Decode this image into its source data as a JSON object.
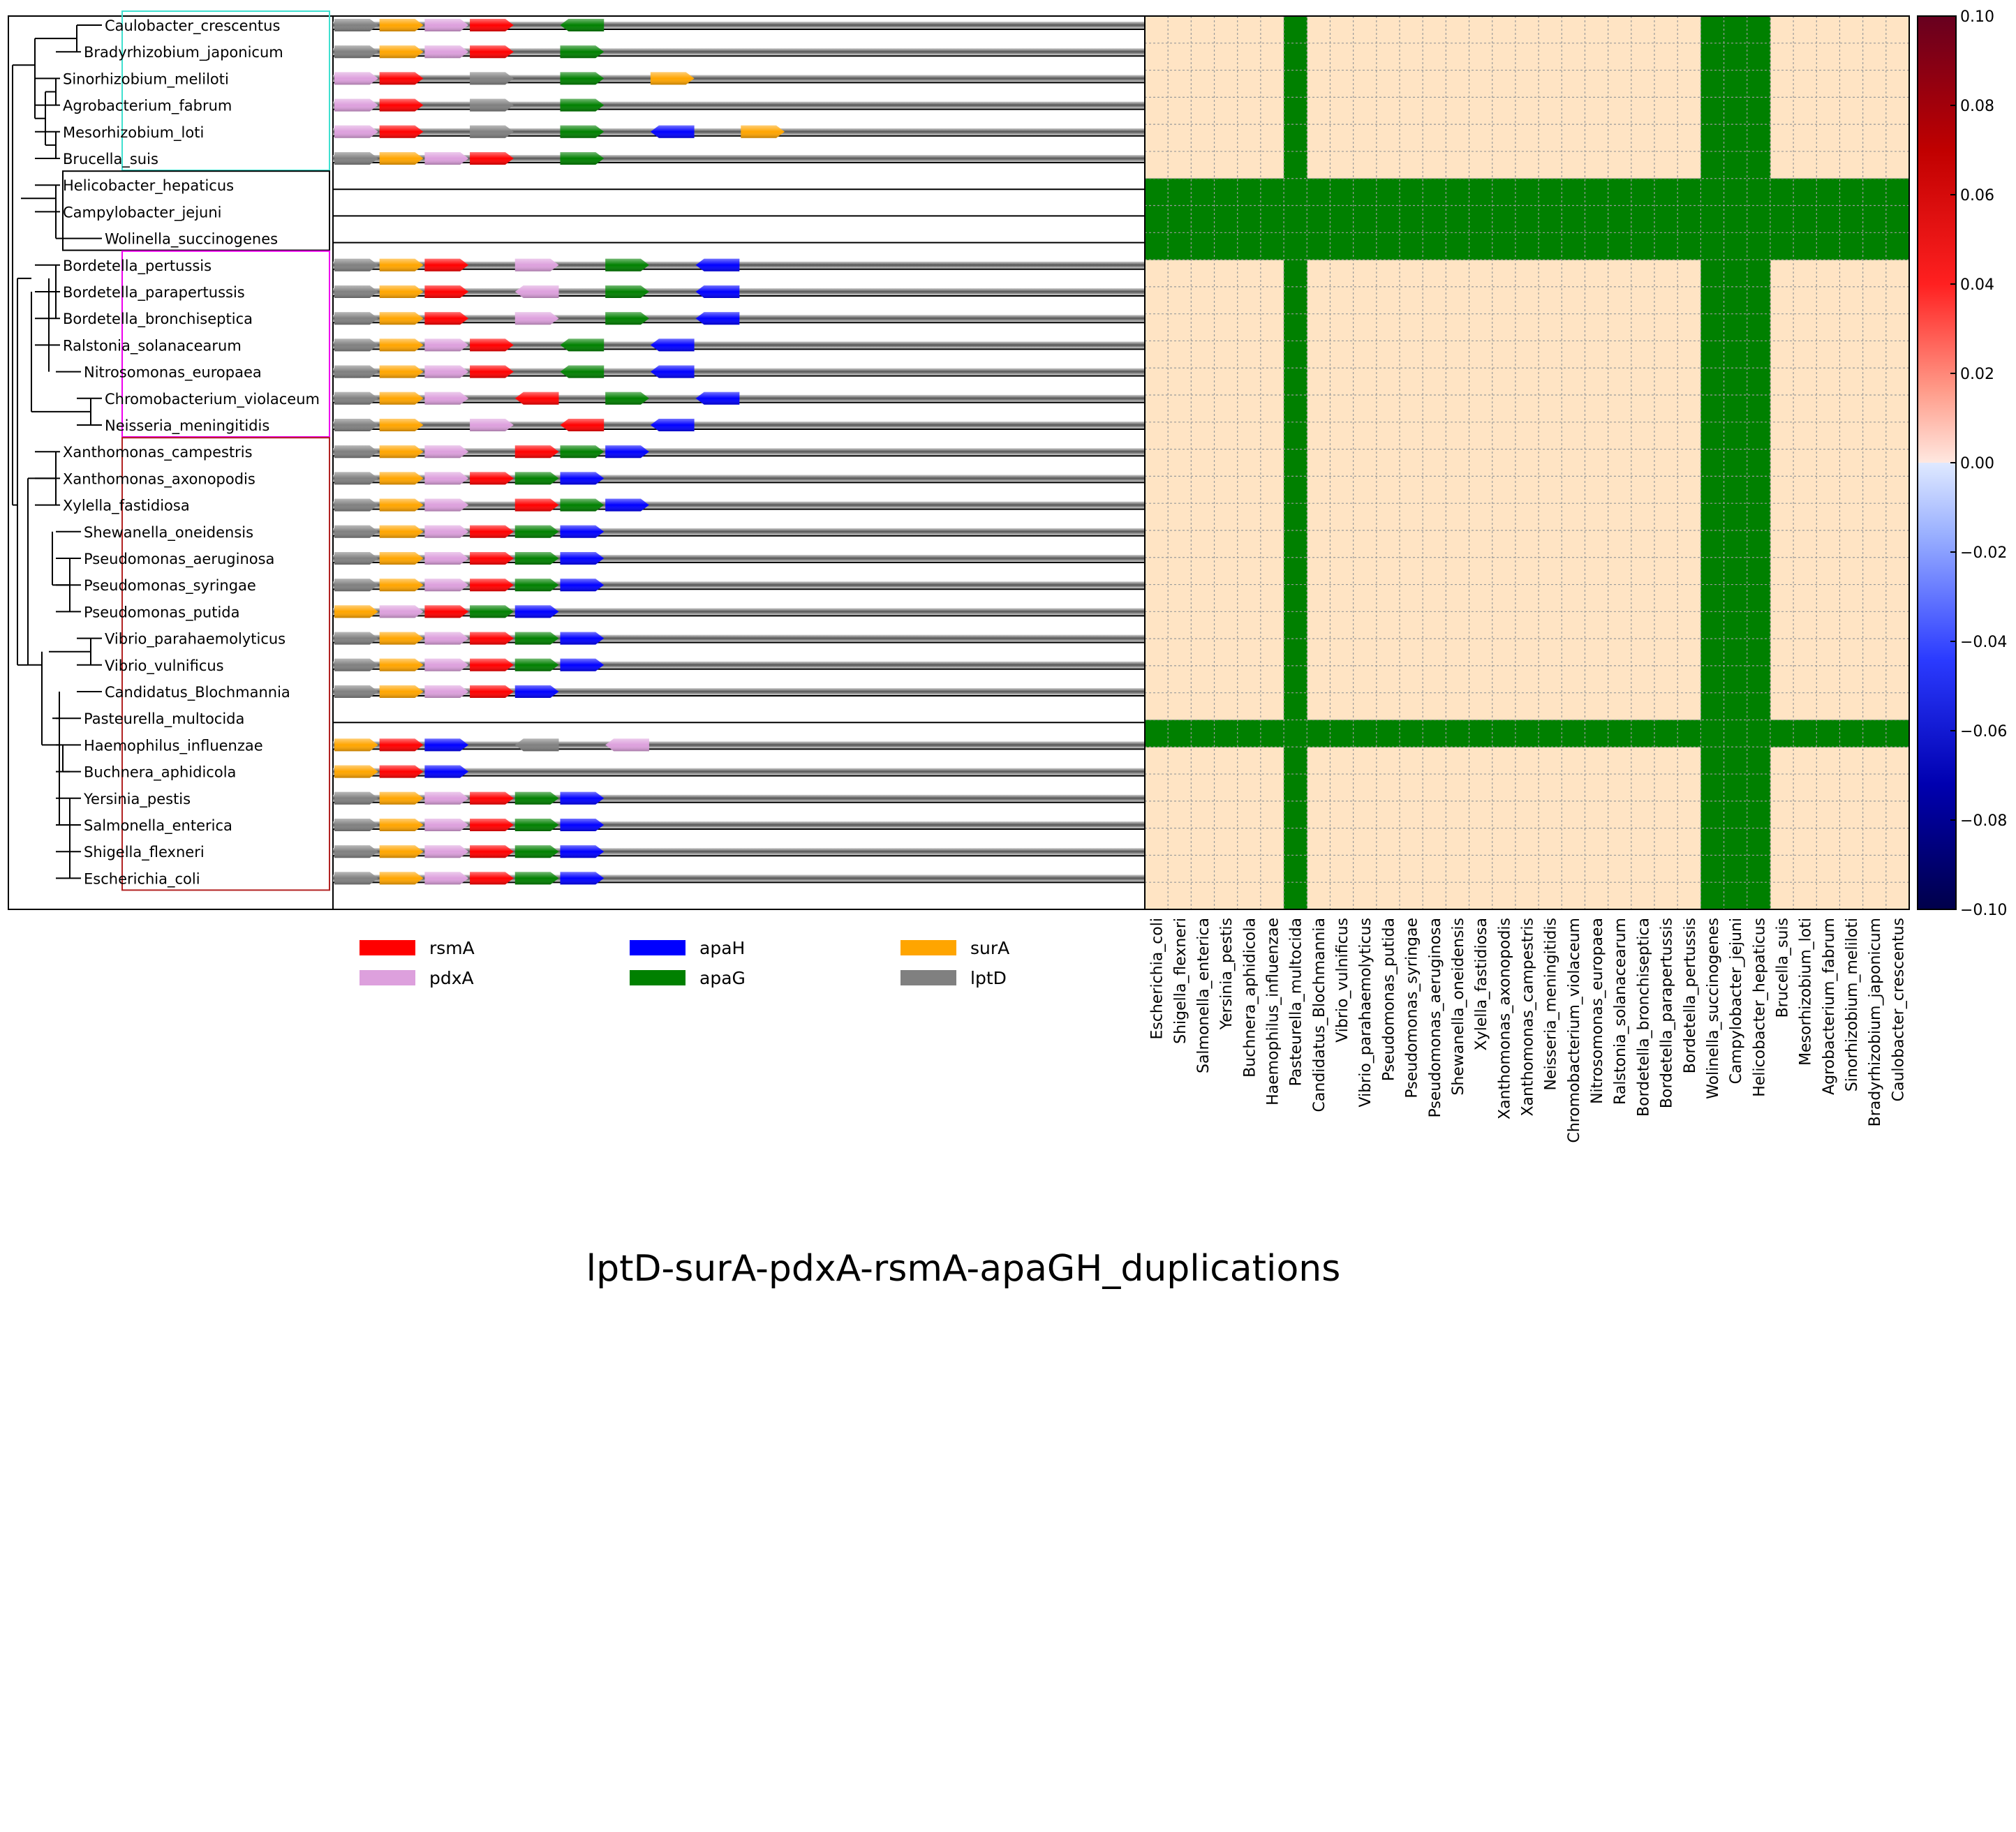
{
  "title": "lptD-surA-pdxA-rsmA-apaGH_duplications",
  "colors": {
    "rsmA": "#ff0000",
    "pdxA": "#dda0dd",
    "apaH": "#0000ff",
    "apaG": "#008000",
    "surA": "#ffa500",
    "lptD": "#808080",
    "heat_bg": "#ffe4c4",
    "heat_hi": "#008000",
    "box_alpha": "#40e0d0",
    "box_epsilon": "#000000",
    "box_beta": "#ee00ee",
    "box_gamma": "#b22222"
  },
  "legend": [
    {
      "gene": "rsmA",
      "label": "rsmA"
    },
    {
      "gene": "apaH",
      "label": "apaH"
    },
    {
      "gene": "surA",
      "label": "surA"
    },
    {
      "gene": "pdxA",
      "label": "pdxA"
    },
    {
      "gene": "apaG",
      "label": "apaG"
    },
    {
      "gene": "lptD",
      "label": "lptD"
    }
  ],
  "species": [
    "Caulobacter_crescentus",
    "Bradyrhizobium_japonicum",
    "Sinorhizobium_meliloti",
    "Agrobacterium_fabrum",
    "Mesorhizobium_loti",
    "Brucella_suis",
    "Helicobacter_hepaticus",
    "Campylobacter_jejuni",
    "Wolinella_succinogenes",
    "Bordetella_pertussis",
    "Bordetella_parapertussis",
    "Bordetella_bronchiseptica",
    "Ralstonia_solanacearum",
    "Nitrosomonas_europaea",
    "Chromobacterium_violaceum",
    "Neisseria_meningitidis",
    "Xanthomonas_campestris",
    "Xanthomonas_axonopodis",
    "Xylella_fastidiosa",
    "Shewanella_oneidensis",
    "Pseudomonas_aeruginosa",
    "Pseudomonas_syringae",
    "Pseudomonas_putida",
    "Vibrio_parahaemolyticus",
    "Vibrio_vulnificus",
    "Candidatus_Blochmannia",
    "Pasteurella_multocida",
    "Haemophilus_influenzae",
    "Buchnera_aphidicola",
    "Yersinia_pestis",
    "Salmonella_enterica",
    "Shigella_flexneri",
    "Escherichia_coli"
  ],
  "gene_tracks": [
    [
      [
        "lptD",
        0,
        1
      ],
      [
        "surA",
        1,
        1
      ],
      [
        "pdxA",
        2,
        1
      ],
      [
        "rsmA",
        3,
        1
      ],
      [
        "apaG",
        5,
        -1
      ]
    ],
    [
      [
        "lptD",
        0,
        1
      ],
      [
        "surA",
        1,
        1
      ],
      [
        "pdxA",
        2,
        1
      ],
      [
        "rsmA",
        3,
        1
      ],
      [
        "apaG",
        5,
        1
      ]
    ],
    [
      [
        "pdxA",
        0,
        1
      ],
      [
        "rsmA",
        1,
        1
      ],
      [
        "lptD",
        3,
        1
      ],
      [
        "apaG",
        5,
        1
      ],
      [
        "surA",
        7,
        1
      ]
    ],
    [
      [
        "pdxA",
        0,
        1
      ],
      [
        "rsmA",
        1,
        1
      ],
      [
        "lptD",
        3,
        1
      ],
      [
        "apaG",
        5,
        1
      ]
    ],
    [
      [
        "pdxA",
        0,
        1
      ],
      [
        "rsmA",
        1,
        1
      ],
      [
        "lptD",
        3,
        1
      ],
      [
        "apaG",
        5,
        1
      ],
      [
        "apaH",
        7,
        -1
      ],
      [
        "surA",
        9,
        1
      ]
    ],
    [
      [
        "lptD",
        0,
        1
      ],
      [
        "surA",
        1,
        1
      ],
      [
        "pdxA",
        2,
        1
      ],
      [
        "rsmA",
        3,
        1
      ],
      [
        "apaG",
        5,
        1
      ]
    ],
    [],
    [],
    [],
    [
      [
        "lptD",
        0,
        1
      ],
      [
        "surA",
        1,
        1
      ],
      [
        "rsmA",
        2,
        1
      ],
      [
        "pdxA",
        4,
        1
      ],
      [
        "apaG",
        6,
        1
      ],
      [
        "apaH",
        8,
        -1
      ]
    ],
    [
      [
        "lptD",
        0,
        1
      ],
      [
        "surA",
        1,
        1
      ],
      [
        "rsmA",
        2,
        1
      ],
      [
        "pdxA",
        4,
        -1
      ],
      [
        "apaG",
        6,
        1
      ],
      [
        "apaH",
        8,
        -1
      ]
    ],
    [
      [
        "lptD",
        0,
        1
      ],
      [
        "surA",
        1,
        1
      ],
      [
        "rsmA",
        2,
        1
      ],
      [
        "pdxA",
        4,
        1
      ],
      [
        "apaG",
        6,
        1
      ],
      [
        "apaH",
        8,
        -1
      ]
    ],
    [
      [
        "lptD",
        0,
        1
      ],
      [
        "surA",
        1,
        1
      ],
      [
        "pdxA",
        2,
        1
      ],
      [
        "rsmA",
        3,
        1
      ],
      [
        "apaG",
        5,
        -1
      ],
      [
        "apaH",
        7,
        -1
      ]
    ],
    [
      [
        "lptD",
        0,
        1
      ],
      [
        "surA",
        1,
        1
      ],
      [
        "pdxA",
        2,
        1
      ],
      [
        "rsmA",
        3,
        1
      ],
      [
        "apaG",
        5,
        -1
      ],
      [
        "apaH",
        7,
        -1
      ]
    ],
    [
      [
        "lptD",
        0,
        1
      ],
      [
        "surA",
        1,
        1
      ],
      [
        "pdxA",
        2,
        1
      ],
      [
        "rsmA",
        4,
        -1
      ],
      [
        "apaG",
        6,
        1
      ],
      [
        "apaH",
        8,
        -1
      ]
    ],
    [
      [
        "lptD",
        0,
        1
      ],
      [
        "surA",
        1,
        1
      ],
      [
        "pdxA",
        3,
        1
      ],
      [
        "rsmA",
        5,
        -1
      ],
      [
        "apaH",
        7,
        -1
      ]
    ],
    [
      [
        "lptD",
        0,
        1
      ],
      [
        "surA",
        1,
        1
      ],
      [
        "pdxA",
        2,
        1
      ],
      [
        "rsmA",
        4,
        1
      ],
      [
        "apaG",
        5,
        1
      ],
      [
        "apaH",
        6,
        1
      ]
    ],
    [
      [
        "lptD",
        0,
        1
      ],
      [
        "surA",
        1,
        1
      ],
      [
        "pdxA",
        2,
        1
      ],
      [
        "rsmA",
        3,
        1
      ],
      [
        "apaG",
        4,
        1
      ],
      [
        "apaH",
        5,
        1
      ]
    ],
    [
      [
        "lptD",
        0,
        1
      ],
      [
        "surA",
        1,
        1
      ],
      [
        "pdxA",
        2,
        1
      ],
      [
        "rsmA",
        4,
        1
      ],
      [
        "apaG",
        5,
        1
      ],
      [
        "apaH",
        6,
        1
      ]
    ],
    [
      [
        "lptD",
        0,
        1
      ],
      [
        "surA",
        1,
        1
      ],
      [
        "pdxA",
        2,
        1
      ],
      [
        "rsmA",
        3,
        1
      ],
      [
        "apaG",
        4,
        1
      ],
      [
        "apaH",
        5,
        1
      ]
    ],
    [
      [
        "lptD",
        0,
        1
      ],
      [
        "surA",
        1,
        1
      ],
      [
        "pdxA",
        2,
        1
      ],
      [
        "rsmA",
        3,
        1
      ],
      [
        "apaG",
        4,
        1
      ],
      [
        "apaH",
        5,
        1
      ]
    ],
    [
      [
        "lptD",
        0,
        1
      ],
      [
        "surA",
        1,
        1
      ],
      [
        "pdxA",
        2,
        1
      ],
      [
        "rsmA",
        3,
        1
      ],
      [
        "apaG",
        4,
        1
      ],
      [
        "apaH",
        5,
        1
      ]
    ],
    [
      [
        "surA",
        0,
        1
      ],
      [
        "pdxA",
        1,
        1
      ],
      [
        "rsmA",
        2,
        1
      ],
      [
        "apaG",
        3,
        1
      ],
      [
        "apaH",
        4,
        1
      ]
    ],
    [
      [
        "lptD",
        0,
        1
      ],
      [
        "surA",
        1,
        1
      ],
      [
        "pdxA",
        2,
        1
      ],
      [
        "rsmA",
        3,
        1
      ],
      [
        "apaG",
        4,
        1
      ],
      [
        "apaH",
        5,
        1
      ]
    ],
    [
      [
        "lptD",
        0,
        1
      ],
      [
        "surA",
        1,
        1
      ],
      [
        "pdxA",
        2,
        1
      ],
      [
        "rsmA",
        3,
        1
      ],
      [
        "apaG",
        4,
        1
      ],
      [
        "apaH",
        5,
        1
      ]
    ],
    [
      [
        "lptD",
        0,
        1
      ],
      [
        "surA",
        1,
        1
      ],
      [
        "pdxA",
        2,
        1
      ],
      [
        "rsmA",
        3,
        1
      ],
      [
        "apaH",
        4,
        1
      ]
    ],
    [],
    [
      [
        "surA",
        0,
        1
      ],
      [
        "rsmA",
        1,
        1
      ],
      [
        "apaH",
        2,
        1
      ],
      [
        "lptD",
        4,
        -1
      ],
      [
        "pdxA",
        6,
        -1
      ]
    ],
    [
      [
        "surA",
        0,
        1
      ],
      [
        "rsmA",
        1,
        1
      ],
      [
        "apaH",
        2,
        1
      ]
    ],
    [
      [
        "lptD",
        0,
        1
      ],
      [
        "surA",
        1,
        1
      ],
      [
        "pdxA",
        2,
        1
      ],
      [
        "rsmA",
        3,
        1
      ],
      [
        "apaG",
        4,
        1
      ],
      [
        "apaH",
        5,
        1
      ]
    ],
    [
      [
        "lptD",
        0,
        1
      ],
      [
        "surA",
        1,
        1
      ],
      [
        "pdxA",
        2,
        1
      ],
      [
        "rsmA",
        3,
        1
      ],
      [
        "apaG",
        4,
        1
      ],
      [
        "apaH",
        5,
        1
      ]
    ],
    [
      [
        "lptD",
        0,
        1
      ],
      [
        "surA",
        1,
        1
      ],
      [
        "pdxA",
        2,
        1
      ],
      [
        "rsmA",
        3,
        1
      ],
      [
        "apaG",
        4,
        1
      ],
      [
        "apaH",
        5,
        1
      ]
    ],
    [
      [
        "lptD",
        0,
        1
      ],
      [
        "surA",
        1,
        1
      ],
      [
        "pdxA",
        2,
        1
      ],
      [
        "rsmA",
        3,
        1
      ],
      [
        "apaG",
        4,
        1
      ],
      [
        "apaH",
        5,
        1
      ]
    ]
  ],
  "heatmap": {
    "x_labels": [
      "Escherichia_coli",
      "Shigella_flexneri",
      "Salmonella_enterica",
      "Yersinia_pestis",
      "Buchnera_aphidicola",
      "Haemophilus_influenzae",
      "Pasteurella_multocida",
      "Candidatus_Blochmannia",
      "Vibrio_vulnificus",
      "Vibrio_parahaemolyticus",
      "Pseudomonas_putida",
      "Pseudomonas_syringae",
      "Pseudomonas_aeruginosa",
      "Shewanella_oneidensis",
      "Xylella_fastidiosa",
      "Xanthomonas_axonopodis",
      "Xanthomonas_campestris",
      "Neisseria_meningitidis",
      "Chromobacterium_violaceum",
      "Nitrosomonas_europaea",
      "Ralstonia_solanacearum",
      "Bordetella_bronchiseptica",
      "Bordetella_parapertussis",
      "Bordetella_pertussis",
      "Wolinella_succinogenes",
      "Campylobacter_jejuni",
      "Helicobacter_hepaticus",
      "Brucella_suis",
      "Mesorhizobium_loti",
      "Agrobacterium_fabrum",
      "Sinorhizobium_meliloti",
      "Bradyrhizobium_japonicum",
      "Caulobacter_crescentus"
    ],
    "highlighted_species": [
      "Helicobacter_hepaticus",
      "Campylobacter_jejuni",
      "Wolinella_succinogenes",
      "Pasteurella_multocida"
    ]
  },
  "colorbar": {
    "ticks": [
      "0.10",
      "0.08",
      "0.06",
      "0.04",
      "0.02",
      "0.00",
      "−0.02",
      "−0.04",
      "−0.06",
      "−0.08",
      "−0.10"
    ],
    "range": [
      -0.1,
      0.1
    ]
  },
  "tree": {
    "order": [
      0,
      1,
      2,
      3,
      4,
      5,
      6,
      7,
      8,
      9,
      10,
      11,
      12,
      13,
      14,
      15,
      16,
      17,
      18,
      19,
      20,
      21,
      22,
      23,
      24,
      25,
      26,
      27,
      28,
      29,
      30,
      31,
      32
    ],
    "leaf_x": [
      150,
      120,
      90,
      90,
      90,
      90,
      90,
      90,
      150,
      90,
      90,
      90,
      90,
      120,
      150,
      150,
      90,
      90,
      90,
      120,
      120,
      120,
      120,
      150,
      150,
      150,
      120,
      120,
      120,
      120,
      120,
      120,
      120
    ]
  }
}
